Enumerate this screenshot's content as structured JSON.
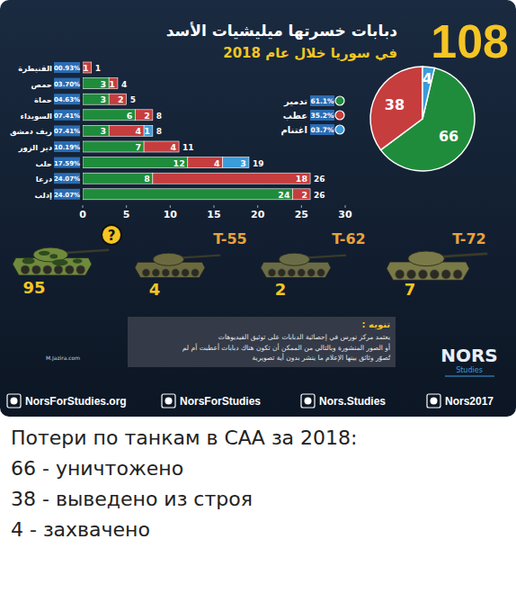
{
  "header": {
    "total": 108,
    "title_lines": [
      "دبابات خسرتها ميليشيات الأسد",
      "في سوريا خلال عام 2018"
    ]
  },
  "chart_data": [
    {
      "type": "bar",
      "orientation": "horizontal",
      "stacked": true,
      "data_labels": true,
      "categories": [
        "القنيطرة",
        "حمص",
        "حماة",
        "السويداء",
        "ريف دمشق",
        "دير الزور",
        "حلب",
        "درعا",
        "إدلب"
      ],
      "shares": [
        0.93,
        3.7,
        4.63,
        7.41,
        7.41,
        10.19,
        17.59,
        24.07,
        24.07
      ],
      "share_labels": [
        "00.93%",
        "03.70%",
        "04.63%",
        "07.41%",
        "07.41%",
        "10.19%",
        "17.59%",
        "24.07%",
        "24.07%"
      ],
      "totals": [
        1,
        4,
        5,
        8,
        8,
        11,
        19,
        26,
        26
      ],
      "series": [
        {
          "name": "تدمير",
          "color": "#1f8c3b",
          "values": [
            0,
            3,
            3,
            6,
            3,
            7,
            12,
            8,
            24
          ]
        },
        {
          "name": "عطب",
          "color": "#c63d3d",
          "values": [
            1,
            1,
            2,
            2,
            4,
            4,
            4,
            18,
            2
          ]
        },
        {
          "name": "اغتنام",
          "color": "#3c9bd9",
          "values": [
            0,
            0,
            0,
            0,
            1,
            0,
            3,
            0,
            0
          ]
        }
      ],
      "xlim": [
        0,
        30
      ],
      "xticks": [
        0,
        5,
        10,
        15,
        20,
        25,
        30
      ]
    },
    {
      "type": "pie",
      "data_labels": true,
      "values": [
        66,
        38,
        4
      ],
      "colors": [
        "#1f8c3b",
        "#c63d3d",
        "#3c9bd9"
      ],
      "percentages": [
        61.1,
        35.2,
        3.7
      ],
      "percentage_labels": [
        "61.1%",
        "35.2%",
        "03.7%"
      ]
    }
  ],
  "tanks": [
    {
      "model": "?",
      "count": 95
    },
    {
      "model": "T-55",
      "count": 4
    },
    {
      "model": "T-62",
      "count": 2
    },
    {
      "model": "T-72",
      "count": 7
    }
  ],
  "note": {
    "title": "تنويه :",
    "lines": [
      "يعتمد مركز نورس في إحصائية الدبابات على توثيق الفيديوهات",
      "أو الصور المنشورة وبالتالي من الممكن أن تكون هناك دبابات أعطبت أم لم",
      "تُصوّر وثائق بينها الإعلام ما ينشر بدون أية تصويرية"
    ]
  },
  "credit": "M.Jazira.com",
  "logo": {
    "name": "NORS",
    "sub": "Studies"
  },
  "footer": [
    "NorsForStudies.org",
    "NorsForStudies",
    "Nors.Studies",
    "Nors2017"
  ],
  "caption": {
    "title": "Потери по танкам в САА за 2018:",
    "lines": [
      "66 - уничтожено",
      "38 - выведено из строя",
      "4 - захвачено"
    ]
  }
}
